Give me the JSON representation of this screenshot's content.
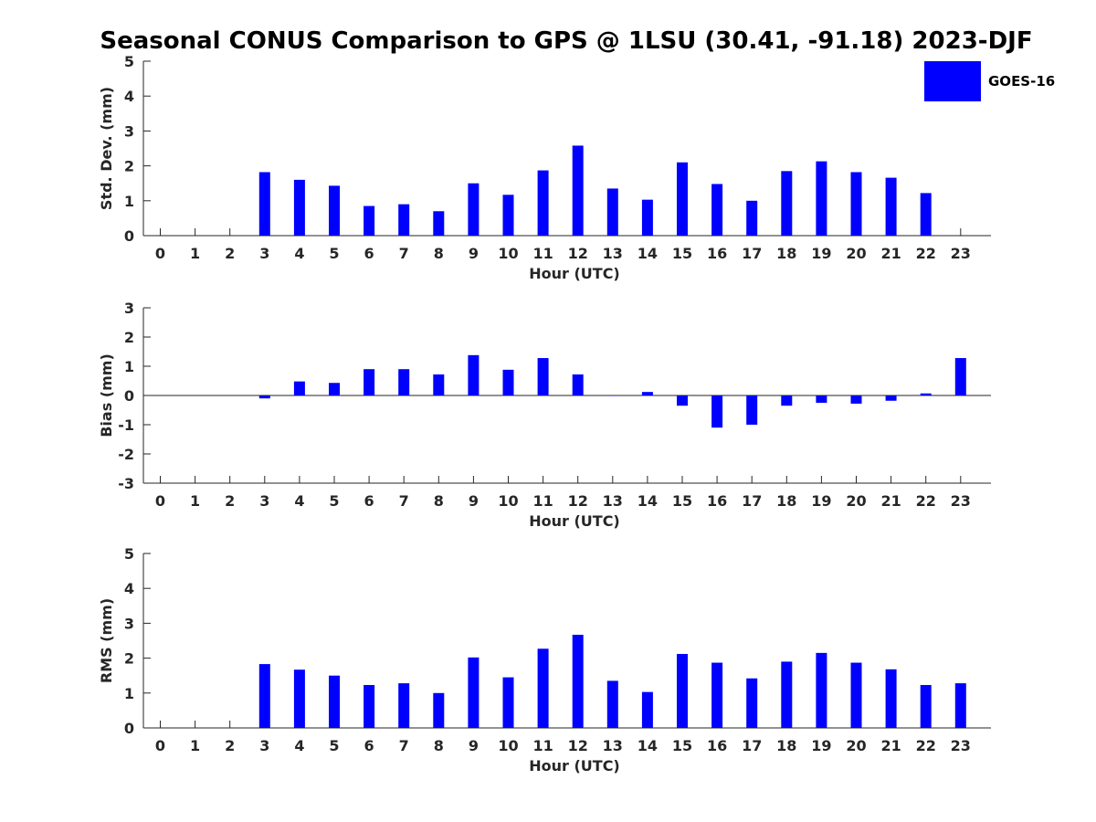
{
  "figure": {
    "title": "Seasonal CONUS Comparison to GPS @ 1LSU (30.41, -91.18) 2023-DJF",
    "legend_label": "GOES-16",
    "bar_color": "#0000ff"
  },
  "chart_data": [
    {
      "type": "bar",
      "title": "",
      "xlabel": "Hour (UTC)",
      "ylabel": "Std. Dev. (mm)",
      "ylim": [
        0,
        5
      ],
      "yticks": [
        0,
        1,
        2,
        3,
        4,
        5
      ],
      "categories": [
        "0",
        "1",
        "2",
        "3",
        "4",
        "5",
        "6",
        "7",
        "8",
        "9",
        "10",
        "11",
        "12",
        "13",
        "14",
        "15",
        "16",
        "17",
        "18",
        "19",
        "20",
        "21",
        "22",
        "23"
      ],
      "series": [
        {
          "name": "GOES-16",
          "values": [
            null,
            null,
            null,
            1.82,
            1.6,
            1.43,
            0.85,
            0.9,
            0.7,
            1.5,
            1.17,
            1.87,
            2.58,
            1.35,
            1.03,
            2.1,
            1.48,
            1.0,
            1.85,
            2.13,
            1.82,
            1.66,
            1.22,
            null
          ]
        }
      ],
      "legend": "top-right",
      "grid": false
    },
    {
      "type": "bar",
      "title": "",
      "xlabel": "Hour (UTC)",
      "ylabel": "Bias (mm)",
      "ylim": [
        -3,
        3
      ],
      "yticks": [
        -3,
        -2,
        -1,
        0,
        1,
        2,
        3
      ],
      "categories": [
        "0",
        "1",
        "2",
        "3",
        "4",
        "5",
        "6",
        "7",
        "8",
        "9",
        "10",
        "11",
        "12",
        "13",
        "14",
        "15",
        "16",
        "17",
        "18",
        "19",
        "20",
        "21",
        "22",
        "23"
      ],
      "series": [
        {
          "name": "GOES-16",
          "values": [
            null,
            null,
            null,
            -0.1,
            0.48,
            0.43,
            0.9,
            0.9,
            0.72,
            1.38,
            0.88,
            1.28,
            0.72,
            0.0,
            0.12,
            -0.35,
            -1.1,
            -1.0,
            -0.35,
            -0.25,
            -0.28,
            -0.18,
            0.07,
            1.28
          ]
        }
      ],
      "grid": false
    },
    {
      "type": "bar",
      "title": "",
      "xlabel": "Hour (UTC)",
      "ylabel": "RMS (mm)",
      "ylim": [
        0,
        5
      ],
      "yticks": [
        0,
        1,
        2,
        3,
        4,
        5
      ],
      "categories": [
        "0",
        "1",
        "2",
        "3",
        "4",
        "5",
        "6",
        "7",
        "8",
        "9",
        "10",
        "11",
        "12",
        "13",
        "14",
        "15",
        "16",
        "17",
        "18",
        "19",
        "20",
        "21",
        "22",
        "23"
      ],
      "series": [
        {
          "name": "GOES-16",
          "values": [
            null,
            null,
            null,
            1.83,
            1.67,
            1.5,
            1.23,
            1.28,
            1.0,
            2.02,
            1.45,
            2.27,
            2.67,
            1.35,
            1.03,
            2.12,
            1.87,
            1.42,
            1.9,
            2.15,
            1.87,
            1.68,
            1.23,
            1.28
          ]
        }
      ],
      "grid": false
    }
  ]
}
